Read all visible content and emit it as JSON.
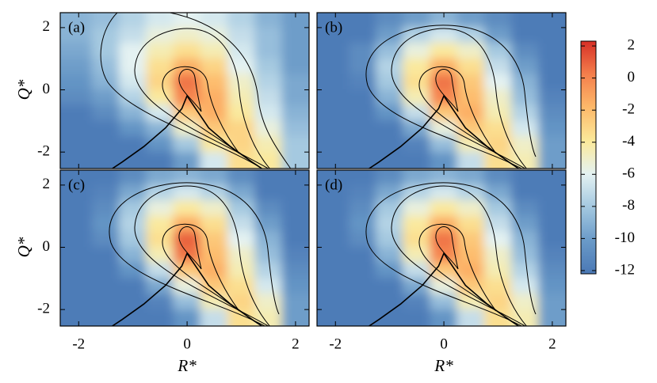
{
  "chart_data": {
    "type": "heatmap",
    "xlabel": "R*",
    "ylabel": "Q*",
    "xlim": [
      -2.34,
      2.25
    ],
    "ylim": [
      -2.53,
      2.48
    ],
    "xticks": [
      -2,
      0,
      2
    ],
    "yticks": [
      -2,
      0,
      2
    ],
    "x": [
      -2,
      -1.5,
      -1,
      -0.5,
      0,
      0.5,
      1,
      1.5,
      2
    ],
    "y": [
      2.25,
      1.75,
      1.25,
      0.75,
      0.25,
      -0.25,
      -0.75,
      -1.25,
      -1.75,
      -2.25
    ],
    "panels": [
      {
        "label": "(a)",
        "z": [
          [
            -9,
            -8.5,
            -7.5,
            -6.5,
            -6,
            -6.5,
            -7.5,
            -9,
            -10
          ],
          [
            -9,
            -8,
            -7,
            -5.5,
            -5,
            -5.5,
            -7,
            -8.5,
            -10
          ],
          [
            -9.5,
            -8,
            -6,
            -4.5,
            -3.5,
            -4.5,
            -6.5,
            -8.5,
            -10
          ],
          [
            -10,
            -8.5,
            -6,
            -3.5,
            -1.5,
            -3,
            -6,
            -8,
            -10
          ],
          [
            -10.5,
            -9,
            -6.5,
            -3,
            0.5,
            -2,
            -5,
            -7.5,
            -9.5
          ],
          [
            -11,
            -10,
            -7.5,
            -4,
            0,
            -1.5,
            -4.5,
            -7,
            -9.5
          ],
          [
            -12,
            -11,
            -9,
            -6.5,
            -2.5,
            -1.5,
            -4,
            -6.5,
            -9
          ],
          [
            -12,
            -12,
            -10.5,
            -9,
            -5,
            -2.5,
            -3,
            -5.5,
            -8.5
          ],
          [
            -12,
            -12,
            -12,
            -10.5,
            -8,
            -4,
            -3,
            -4.5,
            -8
          ],
          [
            -12,
            -12,
            -12,
            -12,
            -10,
            -6.5,
            -3.5,
            -4,
            -8
          ]
        ]
      },
      {
        "label": "(b)",
        "z": [
          [
            -12,
            -12,
            -11,
            -10,
            -9,
            -10,
            -11,
            -12,
            -12
          ],
          [
            -12,
            -12,
            -10,
            -7.5,
            -6.5,
            -7.5,
            -10,
            -12,
            -12
          ],
          [
            -12,
            -11,
            -8.5,
            -5.5,
            -4,
            -5,
            -8,
            -11,
            -12
          ],
          [
            -12,
            -11,
            -7.5,
            -4,
            -1.5,
            -3.5,
            -7,
            -10,
            -12
          ],
          [
            -12,
            -11.5,
            -8,
            -3.5,
            0.5,
            -2.5,
            -6,
            -9,
            -12
          ],
          [
            -12,
            -12,
            -9,
            -4.5,
            0,
            -2,
            -5,
            -8.5,
            -11.5
          ],
          [
            -12,
            -12,
            -10.5,
            -7,
            -2.5,
            -1.5,
            -4.5,
            -7.5,
            -11
          ],
          [
            -12,
            -12,
            -12,
            -9.5,
            -5.5,
            -2.5,
            -3.5,
            -6.5,
            -10.5
          ],
          [
            -12,
            -12,
            -12,
            -11.5,
            -8.5,
            -4.5,
            -3,
            -5,
            -10
          ],
          [
            -12,
            -12,
            -12,
            -12,
            -10.5,
            -7,
            -3.5,
            -4.5,
            -10
          ]
        ]
      },
      {
        "label": "(c)",
        "z": [
          [
            -12,
            -12,
            -11,
            -9.5,
            -9,
            -9.5,
            -11,
            -12,
            -12
          ],
          [
            -12,
            -11.5,
            -9.5,
            -7.5,
            -6.5,
            -7.5,
            -9.5,
            -12,
            -12
          ],
          [
            -12,
            -11,
            -8,
            -5.5,
            -4,
            -5,
            -8,
            -11,
            -12
          ],
          [
            -12,
            -10.5,
            -7.5,
            -4,
            -1.5,
            -3.5,
            -7,
            -10,
            -12
          ],
          [
            -12,
            -11,
            -8,
            -3.5,
            1,
            -2.5,
            -6,
            -9,
            -12
          ],
          [
            -12,
            -12,
            -9,
            -4.5,
            0.5,
            -2,
            -5,
            -8.5,
            -11.5
          ],
          [
            -12,
            -12,
            -10.5,
            -7,
            -2.5,
            -1.5,
            -4.5,
            -7.5,
            -11
          ],
          [
            -12,
            -12,
            -12,
            -9.5,
            -5.5,
            -2.5,
            -3.5,
            -6.5,
            -10.5
          ],
          [
            -12,
            -12,
            -12,
            -11.5,
            -8.5,
            -4.5,
            -3,
            -5,
            -10
          ],
          [
            -12,
            -12,
            -12,
            -12,
            -10.5,
            -7,
            -3.5,
            -4.5,
            -10
          ]
        ]
      },
      {
        "label": "(d)",
        "z": [
          [
            -12,
            -12,
            -11,
            -9.5,
            -9,
            -9.5,
            -11,
            -12,
            -12
          ],
          [
            -12,
            -11.5,
            -9.5,
            -7.5,
            -6.5,
            -7.5,
            -9.5,
            -12,
            -12
          ],
          [
            -12,
            -11,
            -8,
            -5.5,
            -4,
            -5,
            -8,
            -11,
            -12
          ],
          [
            -12,
            -10.5,
            -7.5,
            -4,
            -1.5,
            -3.5,
            -7,
            -10,
            -12
          ],
          [
            -12,
            -11,
            -8,
            -3.5,
            0.5,
            -2.5,
            -6,
            -9,
            -12
          ],
          [
            -12,
            -12,
            -9,
            -4.5,
            0,
            -2,
            -5,
            -8.5,
            -11.5
          ],
          [
            -12,
            -12,
            -10.5,
            -7,
            -2.5,
            -1.5,
            -4.5,
            -7.5,
            -11
          ],
          [
            -12,
            -12,
            -12,
            -9.5,
            -5.5,
            -2.5,
            -3.5,
            -6.5,
            -10.5
          ],
          [
            -12,
            -12,
            -12,
            -11.5,
            -8.5,
            -4.5,
            -3,
            -5,
            -10
          ],
          [
            -12,
            -12,
            -12,
            -12,
            -10.5,
            -7,
            -3.5,
            -4.5,
            -10
          ]
        ]
      }
    ],
    "clim": [
      -12.2,
      2.3
    ],
    "cticks": [
      2,
      0,
      -2,
      -4,
      -6,
      -8,
      -10,
      -12
    ],
    "colormap": [
      "#4a78b5",
      "#6a9ac8",
      "#a3c8e0",
      "#e4f2f2",
      "#fbe99a",
      "#fdb96a",
      "#f47f4c",
      "#d73027"
    ]
  }
}
